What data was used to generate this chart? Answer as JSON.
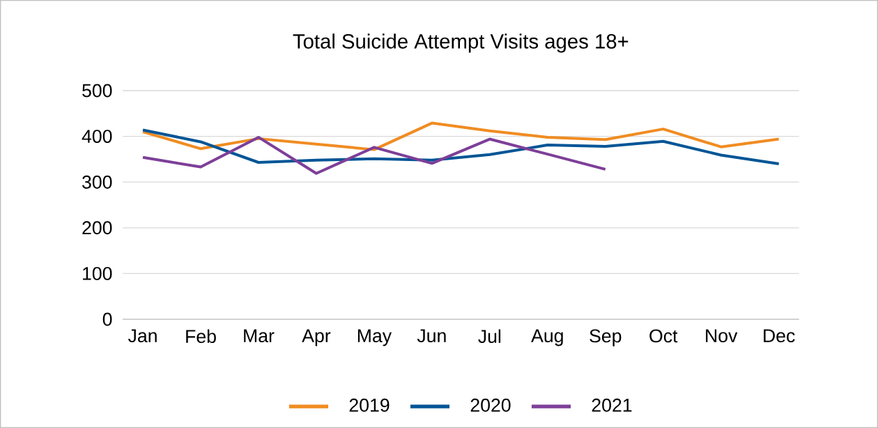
{
  "chart_data": {
    "type": "line",
    "title": "Total Suicide Attempt Visits ages 18+",
    "categories": [
      "Jan",
      "Feb",
      "Mar",
      "Apr",
      "May",
      "Jun",
      "Jul",
      "Aug",
      "Sep",
      "Oct",
      "Nov",
      "Dec"
    ],
    "series": [
      {
        "name": "2019",
        "color": "#f08c22",
        "values": [
          410,
          373,
          395,
          383,
          371,
          429,
          412,
          398,
          393,
          416,
          377,
          394
        ]
      },
      {
        "name": "2020",
        "color": "#005596",
        "values": [
          414,
          388,
          343,
          348,
          351,
          348,
          360,
          381,
          378,
          389,
          359,
          340
        ]
      },
      {
        "name": "2021",
        "color": "#7d3f98",
        "values": [
          354,
          333,
          398,
          319,
          376,
          341,
          394,
          361,
          328,
          null,
          null,
          null
        ]
      }
    ],
    "ylim": [
      0,
      500
    ],
    "yticks": [
      0,
      100,
      200,
      300,
      400,
      500
    ],
    "grid": "y",
    "legend": "bottom",
    "marker": "none",
    "line_style": "solid"
  }
}
